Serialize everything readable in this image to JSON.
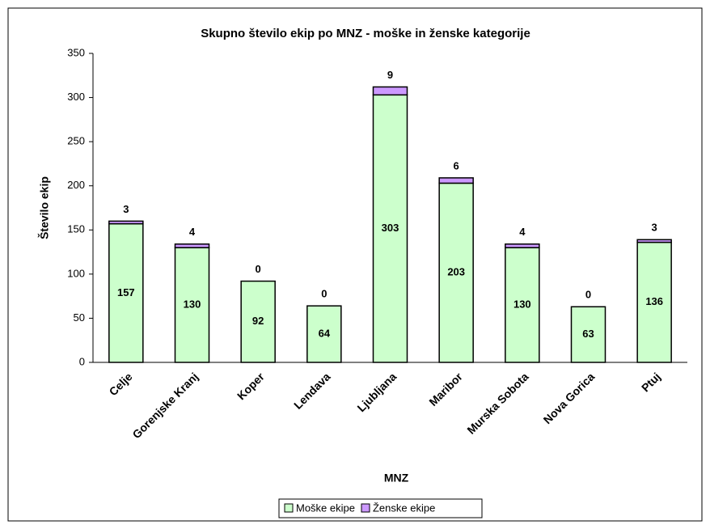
{
  "chart_data": {
    "type": "stacked_bar",
    "title": "Skupno število ekip po MNZ - moške in ženske kategorije",
    "x_label": "MNZ",
    "y_label": "Število ekip",
    "categories": [
      "Celje",
      "Gorenjske Kranj",
      "Koper",
      "Lendava",
      "Ljubljana",
      "Maribor",
      "Murska Sobota",
      "Nova Gorica",
      "Ptuj"
    ],
    "series": [
      {
        "name": "Moške ekipe",
        "color": "#ccffcc",
        "values": [
          157,
          130,
          92,
          64,
          303,
          203,
          130,
          63,
          136
        ]
      },
      {
        "name": "Ženske ekipe",
        "color": "#cc99ff",
        "values": [
          3,
          4,
          0,
          0,
          9,
          6,
          4,
          0,
          3
        ]
      }
    ],
    "ylim": [
      0,
      350
    ],
    "yticks": [
      0,
      50,
      100,
      150,
      200,
      250,
      300,
      350
    ],
    "grid": false,
    "legend": "bottom"
  }
}
